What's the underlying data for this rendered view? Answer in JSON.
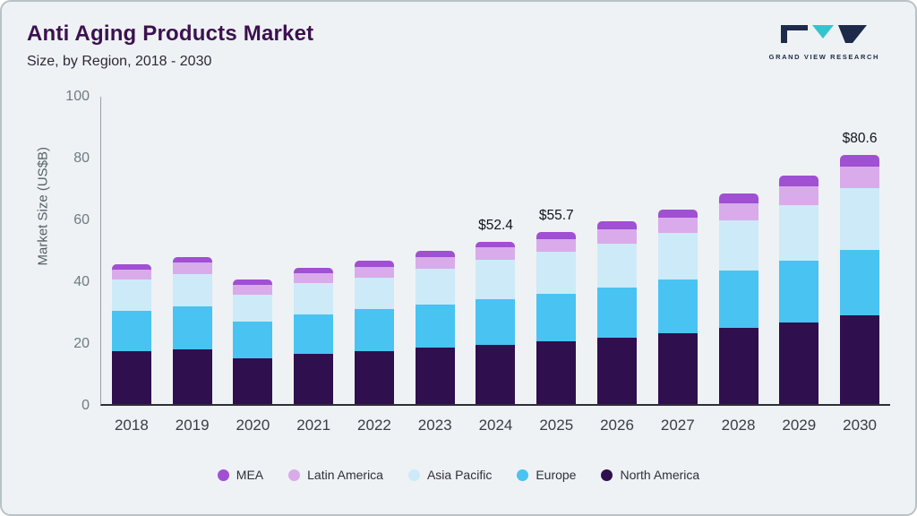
{
  "header": {
    "title": "Anti Aging Products Market",
    "subtitle": "Size, by Region, 2018 - 2030",
    "logo_text": "GRAND VIEW RESEARCH"
  },
  "chart_data": {
    "type": "bar",
    "stacked": true,
    "title": "Anti Aging Products Market Size, by Region, 2018 - 2030",
    "xlabel": "",
    "ylabel": "Market Size (US$B)",
    "ylim": [
      0,
      100
    ],
    "yticks": [
      0,
      20,
      40,
      60,
      80,
      100
    ],
    "grid": false,
    "legend_position": "bottom",
    "categories": [
      "2018",
      "2019",
      "2020",
      "2021",
      "2022",
      "2023",
      "2024",
      "2025",
      "2026",
      "2027",
      "2028",
      "2029",
      "2030"
    ],
    "series": [
      {
        "name": "North America",
        "color": "#2f0f4d",
        "values": [
          17.0,
          17.8,
          14.8,
          16.2,
          17.2,
          18.2,
          19.0,
          20.2,
          21.5,
          22.8,
          24.5,
          26.5,
          28.6
        ]
      },
      {
        "name": "Europe",
        "color": "#49c3f2",
        "values": [
          13.2,
          13.8,
          11.8,
          12.9,
          13.4,
          14.0,
          14.8,
          15.5,
          16.3,
          17.6,
          18.6,
          19.8,
          21.4
        ]
      },
      {
        "name": "Asia Pacific",
        "color": "#cdeaf8",
        "values": [
          10.0,
          10.5,
          8.9,
          9.9,
          10.4,
          11.6,
          12.9,
          13.5,
          14.2,
          15.1,
          16.4,
          18.1,
          19.9
        ]
      },
      {
        "name": "Latin America",
        "color": "#d9abea",
        "values": [
          3.3,
          3.6,
          3.1,
          3.3,
          3.5,
          3.7,
          3.9,
          4.1,
          4.5,
          4.9,
          5.4,
          6.0,
          7.0
        ]
      },
      {
        "name": "MEA",
        "color": "#a050d2",
        "values": [
          1.7,
          1.8,
          1.6,
          1.7,
          1.9,
          2.0,
          1.8,
          2.4,
          2.5,
          2.6,
          3.1,
          3.6,
          3.7
        ]
      }
    ],
    "totals": [
      45.2,
      47.5,
      40.2,
      44.0,
      46.4,
      49.5,
      52.4,
      55.7,
      59.0,
      63.0,
      68.0,
      74.0,
      80.6
    ],
    "annotations": [
      {
        "category": "2024",
        "text": "$52.4"
      },
      {
        "category": "2025",
        "text": "$55.7"
      },
      {
        "category": "2030",
        "text": "$80.6"
      }
    ],
    "legend_order": [
      "MEA",
      "Latin America",
      "Asia Pacific",
      "Europe",
      "North America"
    ]
  }
}
